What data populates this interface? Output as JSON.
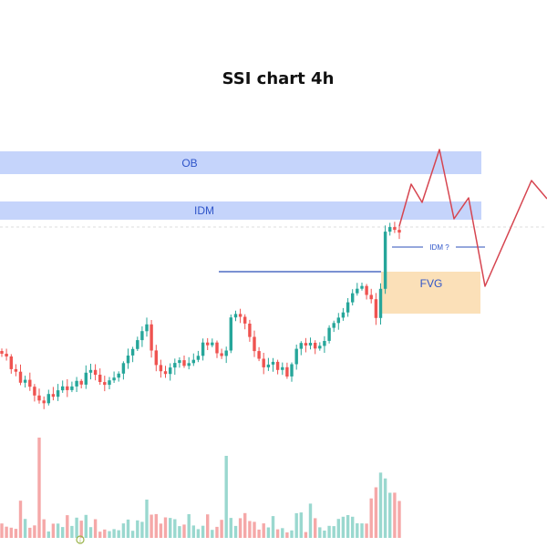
{
  "chart_data": {
    "type": "candlestick",
    "title": "SSI chart 4h",
    "colors": {
      "up": "#26a69a",
      "down": "#ef5350",
      "volume_up": "#9ad8cf",
      "volume_down": "#f5a8a8",
      "zone_blue": "#c5d4fb",
      "zone_orange": "#fbe0b8",
      "label_blue": "#2f55c9",
      "level_line": "#2b4fb8",
      "projection": "#d64550"
    },
    "zones": [
      {
        "label": "OB",
        "color": "#c5d4fb",
        "text_color": "#2f55c9"
      },
      {
        "label": "IDM",
        "color": "#c5d4fb",
        "text_color": "#2f55c9"
      },
      {
        "label": "FVG",
        "color": "#fbe0b8",
        "text_color": "#2f55c9"
      }
    ],
    "annotations": [
      {
        "text": "IDM ?",
        "color": "#2f55c9"
      }
    ],
    "marker": {
      "icon": "info-circle-icon",
      "color": "#9ab34a"
    }
  }
}
